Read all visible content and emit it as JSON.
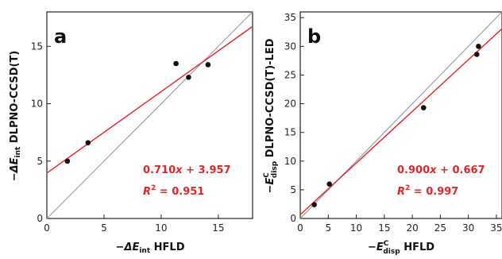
{
  "chart_data": [
    {
      "type": "scatter",
      "panel_label": "a",
      "xlabel": {
        "prefix": "−",
        "sym": "ΔE",
        "sub": "int",
        "suffix": " HFLD"
      },
      "ylabel": {
        "prefix": "−",
        "sym": "ΔE",
        "sub": "int",
        "suffix": " DLPNO-CCSD(T)"
      },
      "xlim": [
        0,
        18
      ],
      "ylim": [
        0,
        18
      ],
      "xticks": [
        0,
        5,
        10,
        15
      ],
      "yticks": [
        0,
        5,
        10,
        15
      ],
      "points": [
        {
          "x": 1.8,
          "y": 5.0
        },
        {
          "x": 3.6,
          "y": 6.6
        },
        {
          "x": 11.3,
          "y": 13.5
        },
        {
          "x": 12.4,
          "y": 12.3
        },
        {
          "x": 14.1,
          "y": 13.4
        }
      ],
      "fit": {
        "slope": 0.71,
        "intercept": 3.957,
        "color": "#e0262a"
      },
      "identity_line": {
        "color": "#999999"
      },
      "annotation": {
        "eq_coef": "0.710",
        "eq_var": "x",
        "eq_rest": " + 3.957",
        "r2_sym": "R",
        "r2_exp": "2",
        "r2_rest": " = 0.951"
      },
      "grid": false,
      "point_color": "#111111"
    },
    {
      "type": "scatter",
      "panel_label": "b",
      "xlabel": {
        "prefix": "−",
        "sym": "E",
        "sup": "C",
        "sub": "disp",
        "suffix": " HFLD"
      },
      "ylabel": {
        "prefix": "−",
        "sym": "E",
        "sup": "C",
        "sub": "disp",
        "suffix": " DLPNO-CCSD(T)-LED"
      },
      "xlim": [
        0,
        36
      ],
      "ylim": [
        0,
        36
      ],
      "xticks": [
        0,
        5,
        10,
        15,
        20,
        25,
        30,
        35
      ],
      "yticks": [
        0,
        5,
        10,
        15,
        20,
        25,
        30,
        35
      ],
      "points": [
        {
          "x": 2.5,
          "y": 2.4
        },
        {
          "x": 5.2,
          "y": 6.0
        },
        {
          "x": 22.0,
          "y": 19.3
        },
        {
          "x": 31.5,
          "y": 28.6
        },
        {
          "x": 31.8,
          "y": 30.0
        }
      ],
      "fit": {
        "slope": 0.9,
        "intercept": 0.667,
        "color": "#e0262a"
      },
      "identity_line": {
        "color": "#999999"
      },
      "annotation": {
        "eq_coef": "0.900",
        "eq_var": "x",
        "eq_rest": " + 0.667",
        "r2_sym": "R",
        "r2_exp": "2",
        "r2_rest": " = 0.997"
      },
      "grid": false,
      "point_color": "#111111"
    }
  ]
}
